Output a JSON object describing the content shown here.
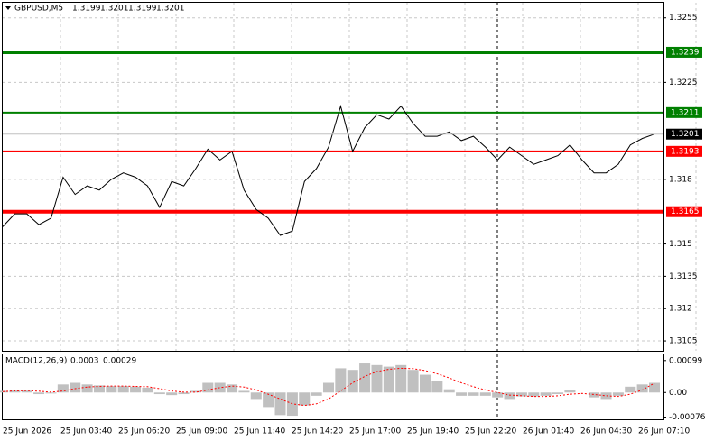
{
  "chart_data": [
    {
      "type": "line",
      "title": "GBPUSD,M5",
      "ohlc": [
        1.3199,
        1.3201,
        1.3199,
        1.3201
      ],
      "color": "#000000",
      "values": [
        1.3158,
        1.3164,
        1.3164,
        1.3159,
        1.3162,
        1.3181,
        1.3173,
        1.3177,
        1.3175,
        1.318,
        1.3183,
        1.3181,
        1.3177,
        1.3167,
        1.3179,
        1.3177,
        1.3185,
        1.3194,
        1.3189,
        1.3193,
        1.3175,
        1.3166,
        1.3162,
        1.3154,
        1.3156,
        1.3179,
        1.3185,
        1.3195,
        1.3214,
        1.3193,
        1.3204,
        1.321,
        1.3208,
        1.3214,
        1.3206,
        1.32,
        1.32,
        1.3202,
        1.3198,
        1.32,
        1.3195,
        1.3189,
        1.3195,
        1.3191,
        1.3187,
        1.3189,
        1.3191,
        1.3196,
        1.3189,
        1.3183,
        1.3183,
        1.3187,
        1.3196,
        1.3199,
        1.3201
      ],
      "xlabels": [
        "25 Jun 2026",
        "25 Jun 03:40",
        "25 Jun 06:20",
        "25 Jun 09:00",
        "25 Jun 11:40",
        "25 Jun 14:20",
        "25 Jun 17:00",
        "25 Jun 19:40",
        "25 Jun 22:20",
        "26 Jun 01:40",
        "26 Jun 04:30",
        "26 Jun 07:10"
      ],
      "ylim": [
        1.31,
        1.3262
      ],
      "yticks": [
        1.3255,
        1.3225,
        1.318,
        1.315,
        1.3135,
        1.312,
        1.3105
      ],
      "grid": true,
      "levels": [
        {
          "value": 1.3239,
          "color": "#008000",
          "width": 4
        },
        {
          "value": 1.3211,
          "color": "#008000",
          "width": 2
        },
        {
          "value": 1.3193,
          "color": "#ff0000",
          "width": 2
        },
        {
          "value": 1.3165,
          "color": "#ff0000",
          "width": 4
        }
      ],
      "current": {
        "value": 1.3201,
        "color": "#000000"
      }
    },
    {
      "type": "macd",
      "title": "MACD(12,26,9)",
      "readings": [
        0.0003,
        0.00029
      ],
      "hist_color": "#c0c0c0",
      "signal_color": "#ff0000",
      "values": [
        5e-05,
        8e-05,
        6e-05,
        -5e-05,
        -3e-05,
        0.00025,
        0.0003,
        0.00025,
        0.00022,
        0.0002,
        0.0002,
        0.00018,
        0.00015,
        -5e-05,
        -8e-05,
        -5e-05,
        5e-05,
        0.0003,
        0.0003,
        0.00025,
        5e-05,
        -0.0002,
        -0.00045,
        -0.0007,
        -0.00072,
        -0.0004,
        -0.0001,
        0.0003,
        0.00075,
        0.0007,
        0.0009,
        0.00085,
        0.0008,
        0.00085,
        0.0007,
        0.00055,
        0.00035,
        0.0001,
        -0.0001,
        -0.0001,
        -0.0001,
        -0.00015,
        -0.0002,
        -0.00012,
        -0.00012,
        -0.0001,
        -5e-05,
        8e-05,
        0,
        -0.00015,
        -0.0002,
        -0.0001,
        0.00018,
        0.00025,
        0.0003
      ],
      "signal": [
        3e-05,
        5e-05,
        6e-05,
        4e-05,
        1e-05,
        5e-05,
        0.00012,
        0.00017,
        0.00019,
        0.0002,
        0.0002,
        0.00019,
        0.00018,
        0.00012,
        5e-05,
        1e-05,
        1e-05,
        8e-05,
        0.00015,
        0.0002,
        0.00017,
        8e-05,
        -5e-05,
        -0.0002,
        -0.00035,
        -0.0004,
        -0.00035,
        -0.0002,
        5e-05,
        0.0003,
        0.0005,
        0.00065,
        0.00072,
        0.00075,
        0.00074,
        0.00068,
        0.00058,
        0.00045,
        0.0003,
        0.00018,
        8e-05,
        0,
        -8e-05,
        -0.0001,
        -0.00012,
        -0.00012,
        -0.0001,
        -5e-05,
        -3e-05,
        -6e-05,
        -0.0001,
        -0.00012,
        -5e-05,
        8e-05,
        0.00029
      ],
      "ylim": [
        -0.00083,
        0.00118
      ],
      "yticks": [
        0.00099,
        {
          "value": 0,
          "label": "0.00"
        },
        -0.00076
      ]
    }
  ]
}
